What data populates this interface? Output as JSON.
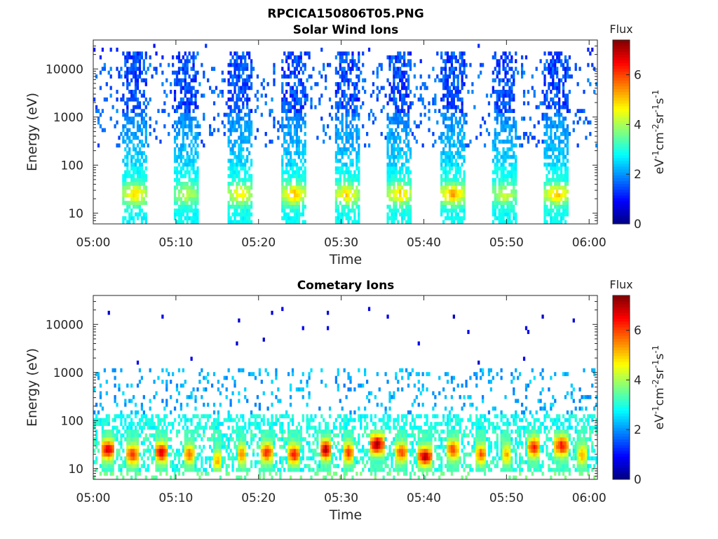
{
  "figure": {
    "filename": "RPCICA150806T05.PNG"
  },
  "colormap": "jet",
  "chart_data": [
    {
      "type": "heatmap",
      "title": "Solar Wind Ions",
      "xlabel": "Time",
      "ylabel": "Energy (eV)",
      "x_range": [
        "05:00",
        "06:01"
      ],
      "x_ticks": [
        "05:00",
        "05:10",
        "05:20",
        "05:30",
        "05:40",
        "05:50",
        "06:00"
      ],
      "y_scale": "log",
      "y_range": [
        6,
        40000
      ],
      "y_ticks": [
        10,
        100,
        1000,
        10000
      ],
      "y_tick_labels": [
        "10",
        "100",
        "1000",
        "10000"
      ],
      "colorbar": {
        "label": "Flux",
        "unit": "eV⁻¹cm⁻²sr⁻¹s⁻¹",
        "range": [
          0,
          7.4
        ],
        "ticks": [
          0,
          2,
          4,
          6
        ]
      },
      "bursts": [
        {
          "start_min": 3.6,
          "end_min": 6.5,
          "peak_energy_ev": 25,
          "peak_flux": 4.8
        },
        {
          "start_min": 9.8,
          "end_min": 12.8,
          "peak_energy_ev": 25,
          "peak_flux": 4.0
        },
        {
          "start_min": 16.3,
          "end_min": 19.3,
          "peak_energy_ev": 25,
          "peak_flux": 4.6
        },
        {
          "start_min": 22.8,
          "end_min": 25.8,
          "peak_energy_ev": 25,
          "peak_flux": 5.0
        },
        {
          "start_min": 29.2,
          "end_min": 32.2,
          "peak_energy_ev": 25,
          "peak_flux": 4.8
        },
        {
          "start_min": 35.6,
          "end_min": 38.6,
          "peak_energy_ev": 25,
          "peak_flux": 4.9
        },
        {
          "start_min": 42.0,
          "end_min": 45.0,
          "peak_energy_ev": 25,
          "peak_flux": 5.2
        },
        {
          "start_min": 48.3,
          "end_min": 51.3,
          "peak_energy_ev": 25,
          "peak_flux": 4.2
        },
        {
          "start_min": 54.6,
          "end_min": 57.6,
          "peak_energy_ev": 25,
          "peak_flux": 5.0
        }
      ]
    },
    {
      "type": "heatmap",
      "title": "Cometary Ions",
      "xlabel": "Time",
      "ylabel": "Energy (eV)",
      "x_range": [
        "05:00",
        "06:01"
      ],
      "x_ticks": [
        "05:00",
        "05:10",
        "05:20",
        "05:30",
        "05:40",
        "05:50",
        "06:00"
      ],
      "y_scale": "log",
      "y_range": [
        6,
        40000
      ],
      "y_ticks": [
        10,
        100,
        1000,
        10000
      ],
      "y_tick_labels": [
        "10",
        "100",
        "1000",
        "10000"
      ],
      "colorbar": {
        "label": "Flux",
        "unit": "eV⁻¹cm⁻²sr⁻¹s⁻¹",
        "range": [
          0,
          7.4
        ],
        "ticks": [
          0,
          2,
          4,
          6
        ]
      },
      "bursts": [
        {
          "start_min": 1.0,
          "end_min": 2.6,
          "peak_energy_ev": 25,
          "peak_flux": 6.8
        },
        {
          "start_min": 4.0,
          "end_min": 5.5,
          "peak_energy_ev": 20,
          "peak_flux": 6.2
        },
        {
          "start_min": 7.5,
          "end_min": 9.0,
          "peak_energy_ev": 22,
          "peak_flux": 6.8
        },
        {
          "start_min": 11.0,
          "end_min": 12.3,
          "peak_energy_ev": 20,
          "peak_flux": 5.6
        },
        {
          "start_min": 14.5,
          "end_min": 15.6,
          "peak_energy_ev": 15,
          "peak_flux": 5.2
        },
        {
          "start_min": 17.4,
          "end_min": 18.6,
          "peak_energy_ev": 20,
          "peak_flux": 5.4
        },
        {
          "start_min": 20.3,
          "end_min": 21.7,
          "peak_energy_ev": 22,
          "peak_flux": 6.2
        },
        {
          "start_min": 23.6,
          "end_min": 25.0,
          "peak_energy_ev": 20,
          "peak_flux": 6.4
        },
        {
          "start_min": 27.4,
          "end_min": 28.8,
          "peak_energy_ev": 25,
          "peak_flux": 7.0
        },
        {
          "start_min": 30.2,
          "end_min": 31.6,
          "peak_energy_ev": 22,
          "peak_flux": 6.0
        },
        {
          "start_min": 33.5,
          "end_min": 35.2,
          "peak_energy_ev": 32,
          "peak_flux": 7.2
        },
        {
          "start_min": 36.6,
          "end_min": 38.0,
          "peak_energy_ev": 22,
          "peak_flux": 6.0
        },
        {
          "start_min": 39.3,
          "end_min": 41.0,
          "peak_energy_ev": 18,
          "peak_flux": 7.0
        },
        {
          "start_min": 42.8,
          "end_min": 44.2,
          "peak_energy_ev": 25,
          "peak_flux": 6.0
        },
        {
          "start_min": 46.3,
          "end_min": 47.6,
          "peak_energy_ev": 20,
          "peak_flux": 5.8
        },
        {
          "start_min": 49.4,
          "end_min": 50.6,
          "peak_energy_ev": 20,
          "peak_flux": 5.2
        },
        {
          "start_min": 52.6,
          "end_min": 54.0,
          "peak_energy_ev": 28,
          "peak_flux": 6.4
        },
        {
          "start_min": 55.8,
          "end_min": 57.6,
          "peak_energy_ev": 30,
          "peak_flux": 6.4
        },
        {
          "start_min": 58.6,
          "end_min": 59.8,
          "peak_energy_ev": 20,
          "peak_flux": 5.2
        }
      ]
    }
  ]
}
